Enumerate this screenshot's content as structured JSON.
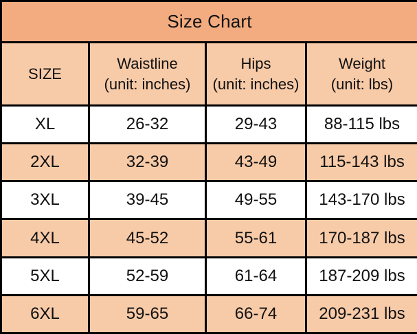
{
  "title": "Size Chart",
  "columns": [
    {
      "label": "SIZE",
      "sublabel": ""
    },
    {
      "label": "Waistline",
      "sublabel": "(unit: inches)"
    },
    {
      "label": "Hips",
      "sublabel": "(unit: inches)"
    },
    {
      "label": "Weight",
      "sublabel": "(unit: lbs)"
    }
  ],
  "rows": [
    {
      "size": "XL",
      "waistline": "26-32",
      "hips": "29-43",
      "weight": "88-115 lbs"
    },
    {
      "size": "2XL",
      "waistline": "32-39",
      "hips": "43-49",
      "weight": "115-143 lbs"
    },
    {
      "size": "3XL",
      "waistline": "39-45",
      "hips": "49-55",
      "weight": "143-170 lbs"
    },
    {
      "size": "4XL",
      "waistline": "45-52",
      "hips": "55-61",
      "weight": "170-187 lbs"
    },
    {
      "size": "5XL",
      "waistline": "52-59",
      "hips": "61-64",
      "weight": "187-209 lbs"
    },
    {
      "size": "6XL",
      "waistline": "59-65",
      "hips": "66-74",
      "weight": "209-231 lbs"
    }
  ],
  "colors": {
    "title_bg": "#F2AC80",
    "header_bg": "#F8CBA8",
    "stripe_bg": "#F8CBA8",
    "row_bg": "#FFFFFF",
    "border": "#000000",
    "text": "#111111"
  }
}
